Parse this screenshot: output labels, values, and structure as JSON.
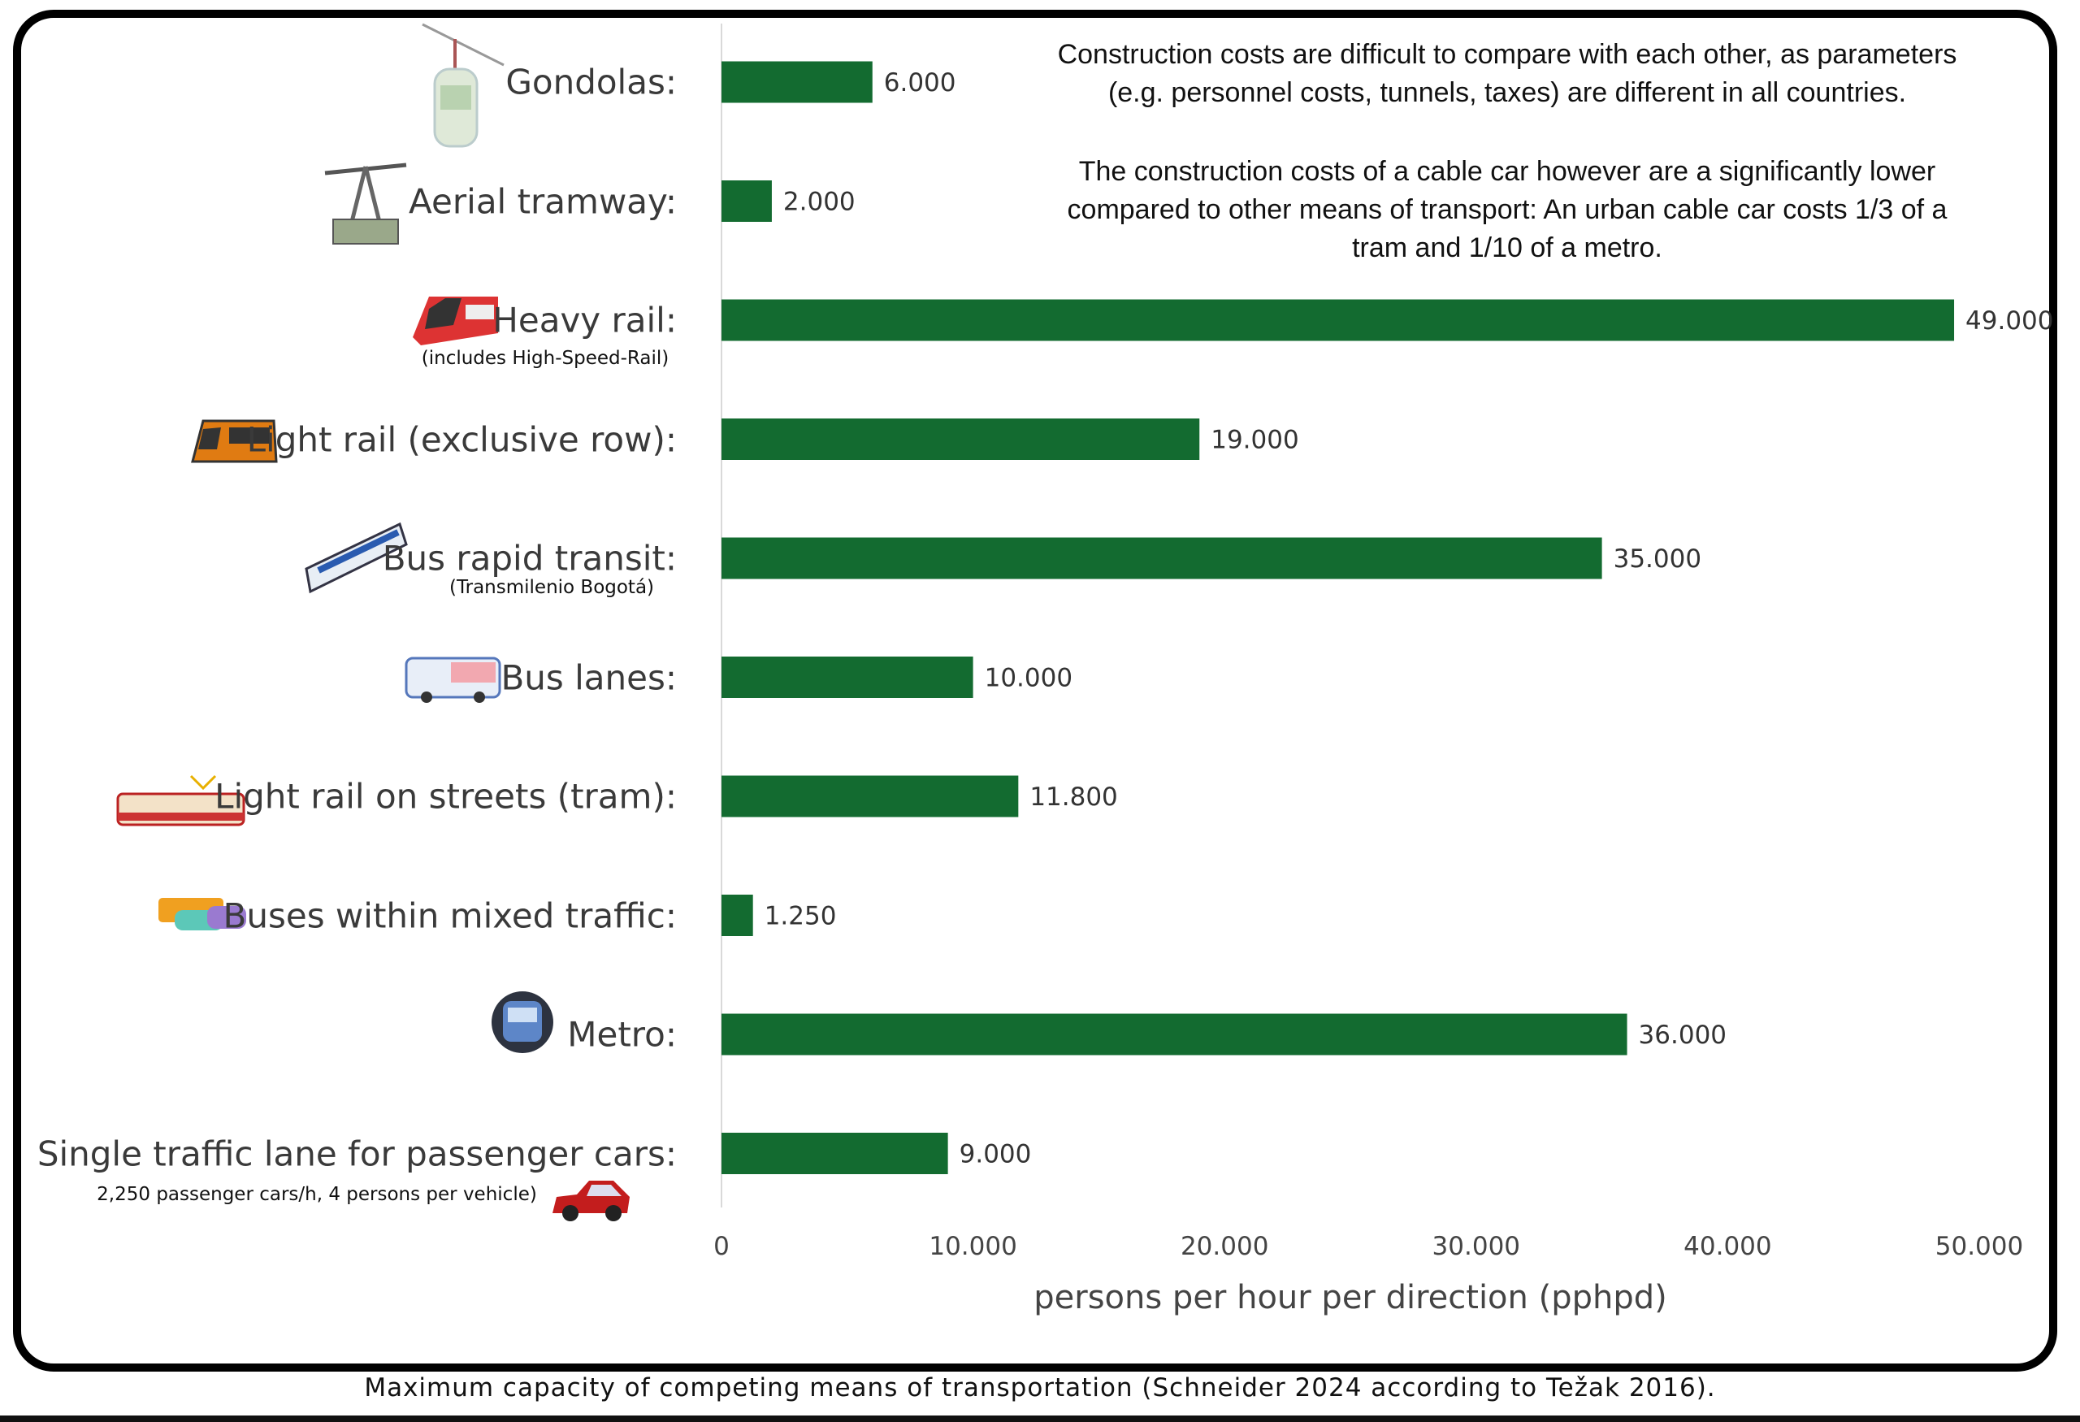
{
  "chart_data": {
    "type": "bar",
    "orientation": "horizontal",
    "categories": [
      "Gondolas:",
      "Aerial tramway:",
      "Heavy rail:",
      "Light rail (exclusive row):",
      "Bus rapid transit:",
      "Bus lanes:",
      "Light rail on streets (tram):",
      "Buses within mixed traffic:",
      "Metro:",
      "Single traffic lane for passenger cars:"
    ],
    "sublabels": {
      "2": "(includes High-Speed-Rail)",
      "4": "(Transmilenio Bogotá)",
      "9": "2,250 passenger cars/h, 4 persons per vehicle)"
    },
    "values": [
      6000,
      2000,
      49000,
      19000,
      35000,
      10000,
      11800,
      1250,
      36000,
      9000
    ],
    "data_labels": [
      "6.000",
      "2.000",
      "49.000",
      "19.000",
      "35.000",
      "10.000",
      "11.800",
      "1.250",
      "36.000",
      "9.000"
    ],
    "xlim": [
      0,
      50000
    ],
    "xticks": [
      0,
      10000,
      20000,
      30000,
      40000,
      50000
    ],
    "xtick_labels": [
      "0",
      "10.000",
      "20.000",
      "30.000",
      "40.000",
      "50.000"
    ],
    "xlabel": "persons per hour per direction (pphpd)",
    "grid": false,
    "bar_color": "#136b30",
    "icons": [
      "gondola-icon",
      "aerial-tramway-icon",
      "heavy-rail-icon",
      "light-rail-icon",
      "bus-rapid-transit-icon",
      "bus-icon",
      "tram-icon",
      "mixed-traffic-icon",
      "metro-icon",
      "car-icon"
    ]
  },
  "notes": [
    [
      "Construction costs are difficult to compare with each other, as parameters",
      "(e.g. personnel costs, tunnels, taxes) are different in all countries."
    ],
    [
      "The construction costs of a cable car however are a significantly lower",
      "compared to other means of transport: An urban cable car costs 1/3 of a",
      "tram and 1/10 of a metro."
    ]
  ],
  "caption": "Maximum capacity of competing means of transportation (Schneider 2024 according to Težak 2016)."
}
